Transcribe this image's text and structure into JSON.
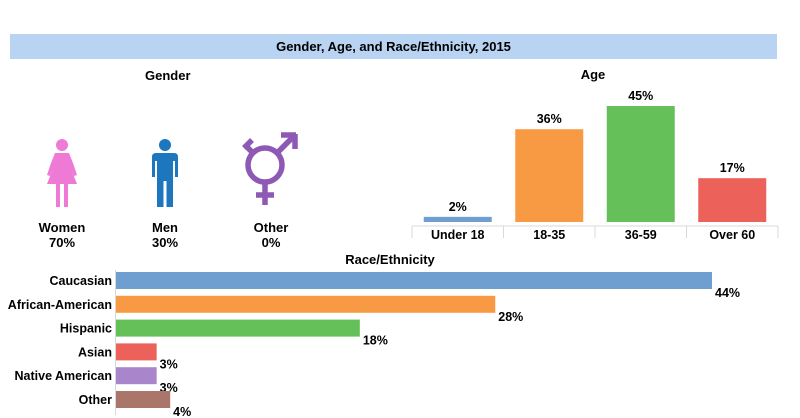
{
  "header": {
    "title": "Gender, Age, and Race/Ethnicity, 2015"
  },
  "gender": {
    "title": "Gender",
    "items": [
      {
        "label": "Women",
        "value": "70%",
        "icon": "female-icon",
        "color": "#ee7ad6"
      },
      {
        "label": "Men",
        "value": "30%",
        "icon": "male-icon",
        "color": "#1c77bf"
      },
      {
        "label": "Other",
        "value": "0%",
        "icon": "other-gender-icon",
        "color": "#8e59b4"
      }
    ]
  },
  "chart_data": [
    {
      "type": "bar",
      "title": "Age",
      "categories": [
        "Under 18",
        "18-35",
        "36-59",
        "Over 60"
      ],
      "values": [
        2,
        36,
        45,
        17
      ],
      "value_labels": [
        "2%",
        "36%",
        "45%",
        "17%"
      ],
      "colors": [
        "#6f9fd1",
        "#f89a43",
        "#66c05a",
        "#ec615a"
      ],
      "ylim": [
        0,
        45
      ],
      "grid": false
    },
    {
      "type": "bar",
      "orientation": "horizontal",
      "title": "Race/Ethnicity",
      "categories": [
        "Caucasian",
        "African-American",
        "Hispanic",
        "Asian",
        "Native American",
        "Other"
      ],
      "values": [
        44,
        28,
        18,
        3,
        3,
        4
      ],
      "value_labels": [
        "44%",
        "28%",
        "18%",
        "3%",
        "3%",
        "4%"
      ],
      "colors": [
        "#6f9fd1",
        "#f89a43",
        "#66c05a",
        "#ec615a",
        "#a985cc",
        "#aa766a"
      ],
      "xlim": [
        0,
        44
      ],
      "grid": false
    }
  ]
}
